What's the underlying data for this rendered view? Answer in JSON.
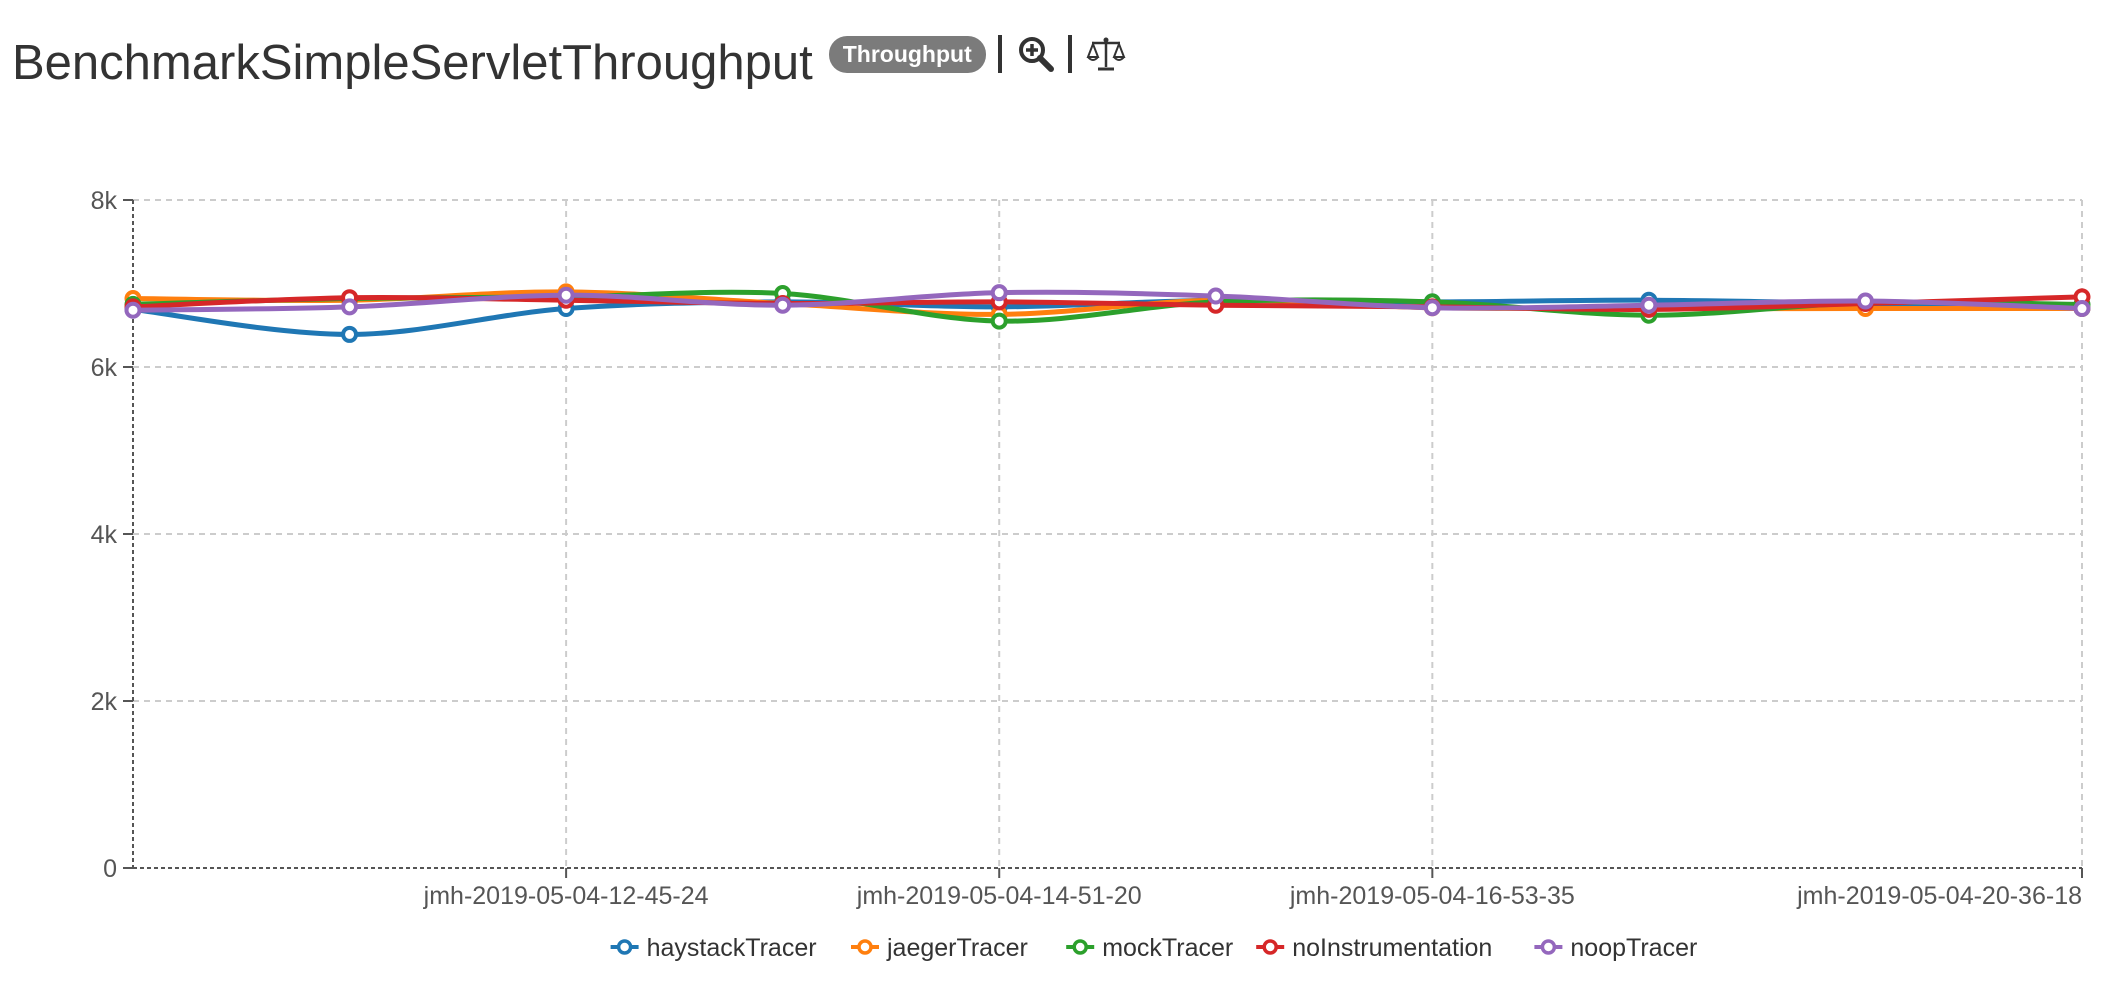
{
  "header": {
    "title": "BenchmarkSimpleServletThroughput",
    "badge": "Throughput",
    "zoom_icon": "zoom-in-icon",
    "compare_icon": "balance-scale-icon"
  },
  "chart_data": {
    "type": "line",
    "title": "",
    "xlabel": "",
    "ylabel": "",
    "ylim": [
      0,
      8000
    ],
    "yticks": [
      "0",
      "2k",
      "4k",
      "6k",
      "8k"
    ],
    "categories": [
      "",
      "",
      "jmh-2019-05-04-12-45-24",
      "",
      "jmh-2019-05-04-14-51-20",
      "",
      "jmh-2019-05-04-16-53-35",
      "",
      "",
      "jmh-2019-05-04-20-36-18"
    ],
    "x_tick_labels": [
      "jmh-2019-05-04-12-45-24",
      "jmh-2019-05-04-14-51-20",
      "jmh-2019-05-04-16-53-35",
      "jmh-2019-05-04-20-36-18"
    ],
    "grid": true,
    "smooth": true,
    "legend_position": "bottom",
    "series": [
      {
        "name": "haystackTracer",
        "color": "#1f77b4",
        "values": [
          6690,
          6390,
          6700,
          6780,
          6720,
          6800,
          6780,
          6800,
          6760,
          6700
        ]
      },
      {
        "name": "jaegerTracer",
        "color": "#ff7f0e",
        "values": [
          6820,
          6800,
          6900,
          6760,
          6630,
          6800,
          6710,
          6700,
          6700,
          6700
        ]
      },
      {
        "name": "mockTracer",
        "color": "#2ca02c",
        "values": [
          6750,
          6820,
          6840,
          6880,
          6550,
          6780,
          6780,
          6620,
          6770,
          6750
        ]
      },
      {
        "name": "noInstrumentation",
        "color": "#d62728",
        "values": [
          6720,
          6830,
          6800,
          6760,
          6780,
          6740,
          6720,
          6690,
          6760,
          6840
        ]
      },
      {
        "name": "noopTracer",
        "color": "#9467bd",
        "values": [
          6680,
          6720,
          6860,
          6740,
          6890,
          6850,
          6710,
          6740,
          6790,
          6700
        ]
      }
    ]
  }
}
